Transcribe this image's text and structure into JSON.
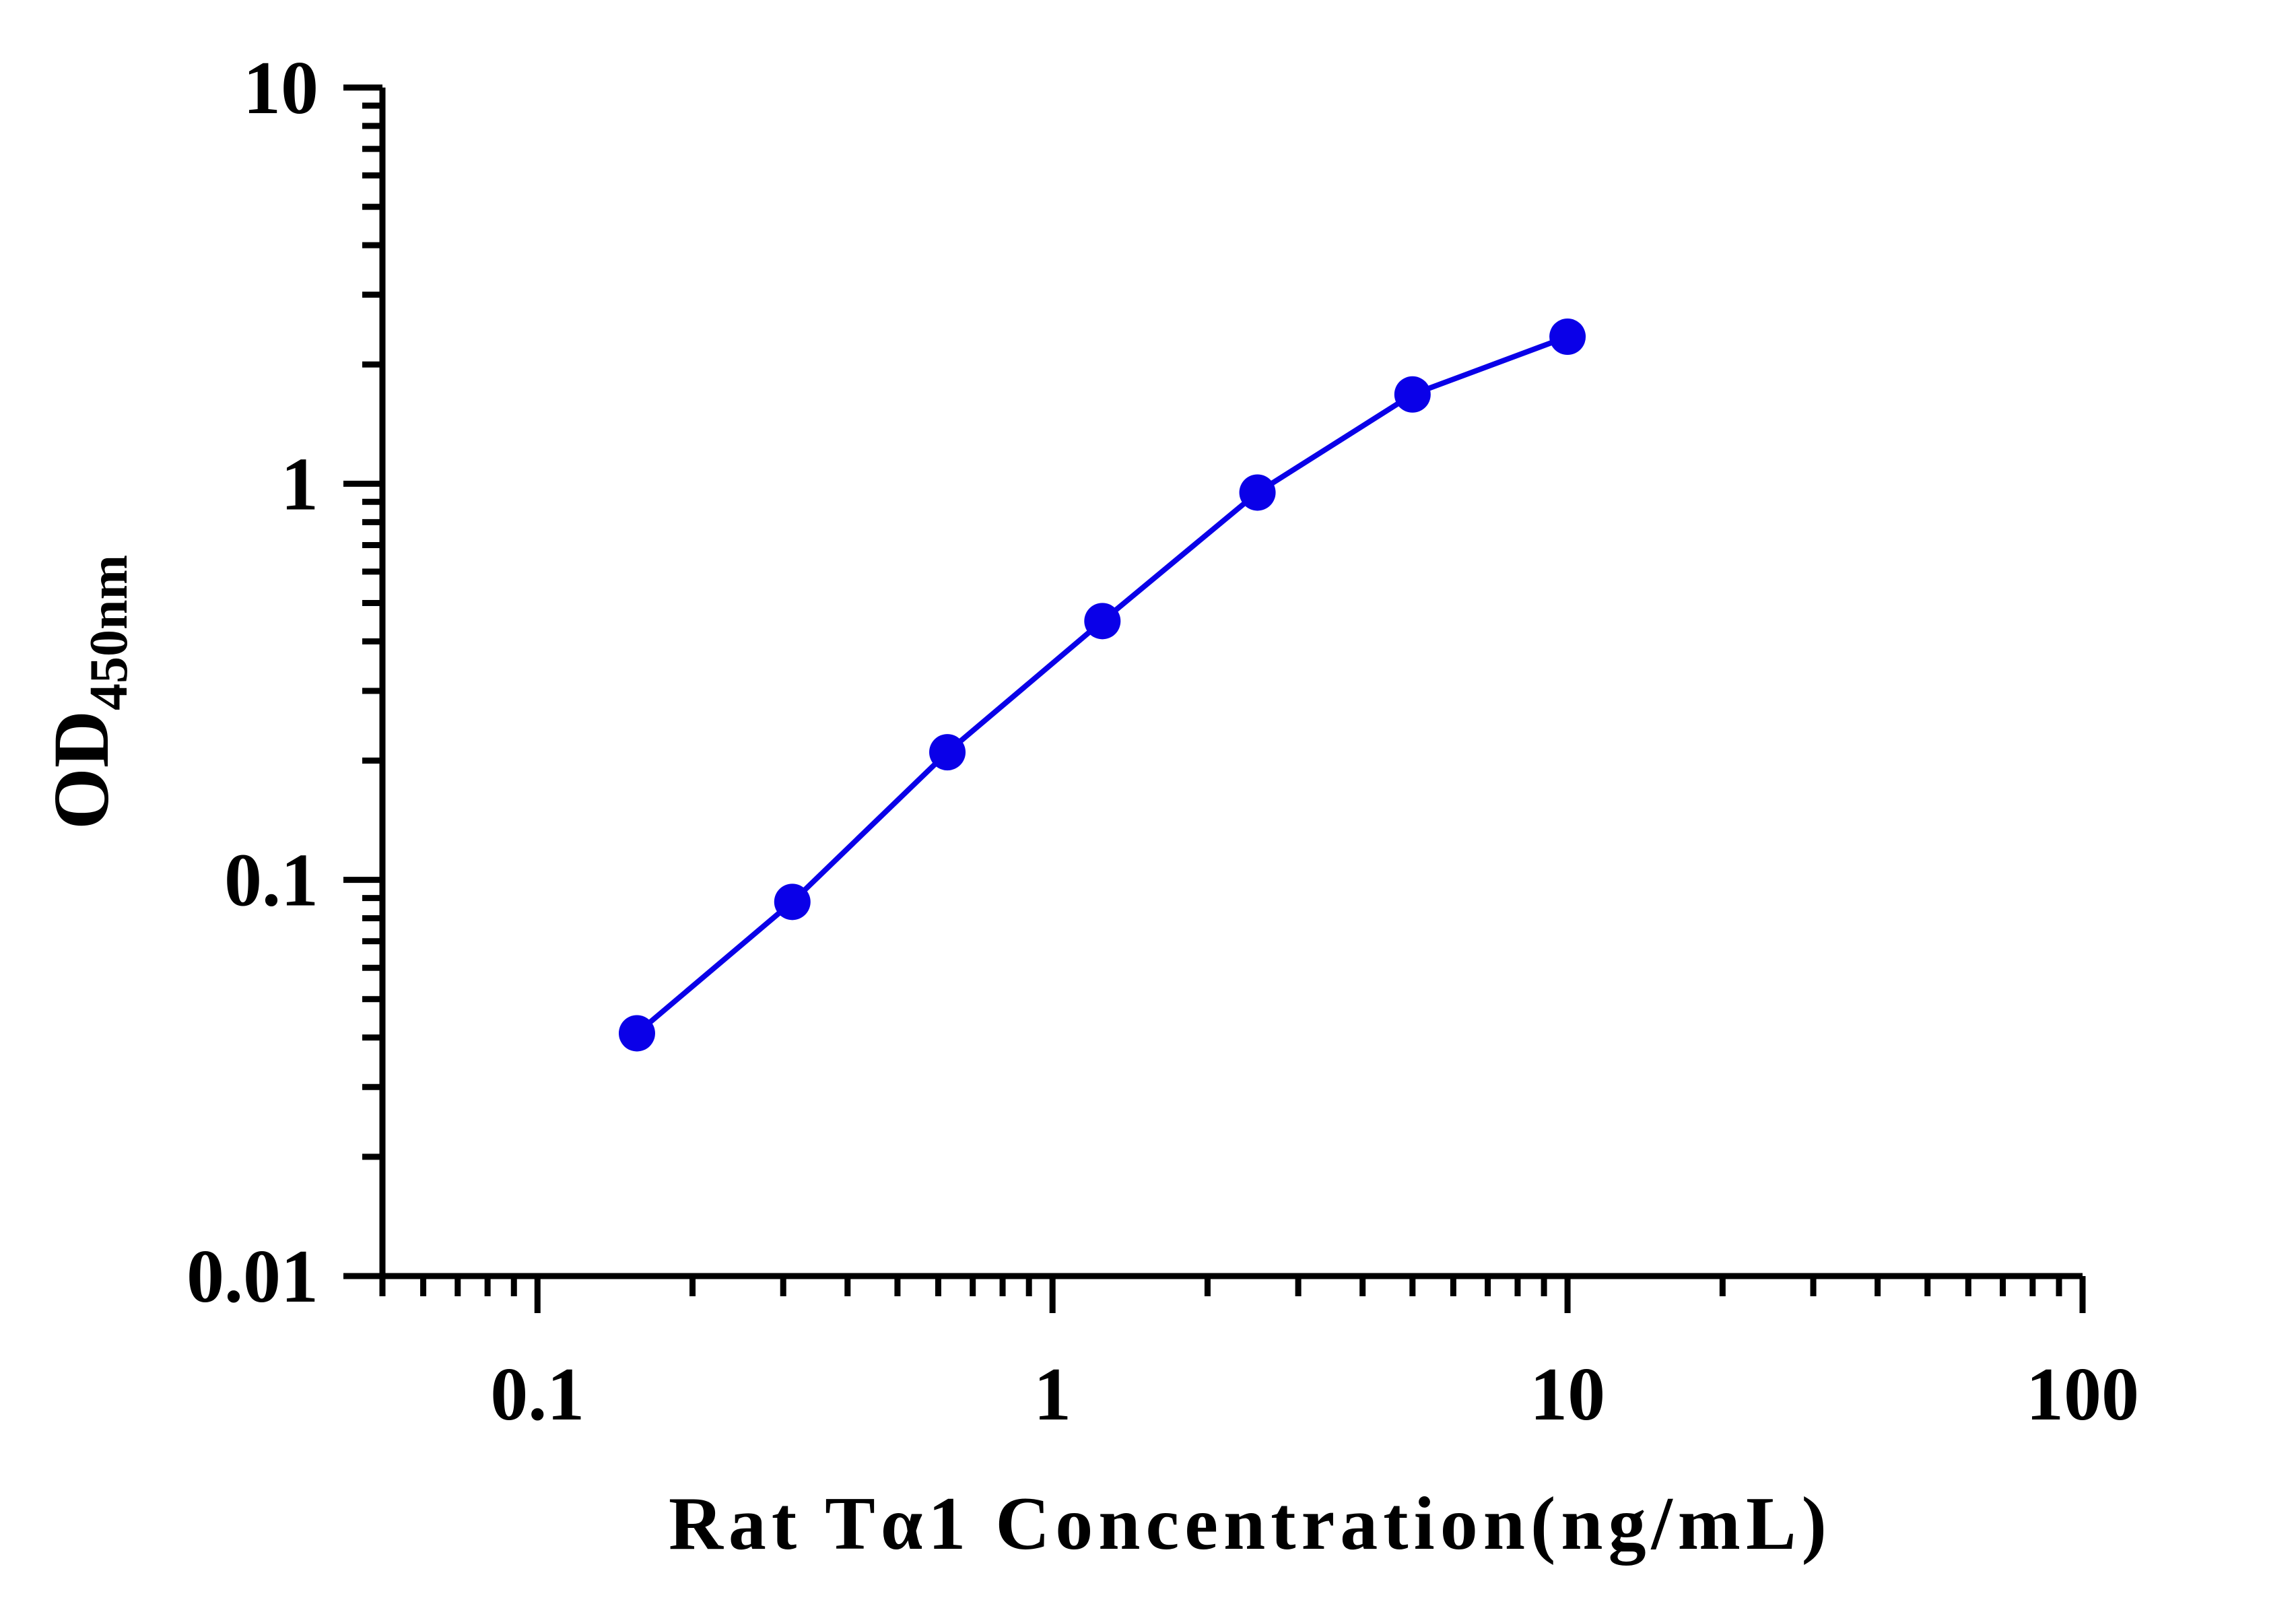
{
  "chart_data": {
    "type": "line",
    "title": "",
    "xlabel": "Rat Tα1 Concentration(ng/mL)",
    "ylabel": {
      "main": "OD",
      "subscript": "450nm"
    },
    "xscale": "log",
    "yscale": "log",
    "xlim": [
      0.05,
      100
    ],
    "ylim": [
      0.01,
      10
    ],
    "xticks": [
      {
        "value": 0.1,
        "label": "0.1"
      },
      {
        "value": 1,
        "label": "1"
      },
      {
        "value": 10,
        "label": "10"
      },
      {
        "value": 100,
        "label": "100"
      }
    ],
    "yticks": [
      {
        "value": 0.01,
        "label": "0.01"
      },
      {
        "value": 0.1,
        "label": "0.1"
      },
      {
        "value": 1,
        "label": "1"
      },
      {
        "value": 10,
        "label": "10"
      }
    ],
    "grid": false,
    "legend": "none",
    "series": [
      {
        "color": "#0a00e8",
        "x": [
          0.156,
          0.3125,
          0.625,
          1.25,
          2.5,
          5,
          10
        ],
        "y": [
          0.041,
          0.088,
          0.21,
          0.45,
          0.95,
          1.68,
          2.35
        ]
      }
    ]
  }
}
